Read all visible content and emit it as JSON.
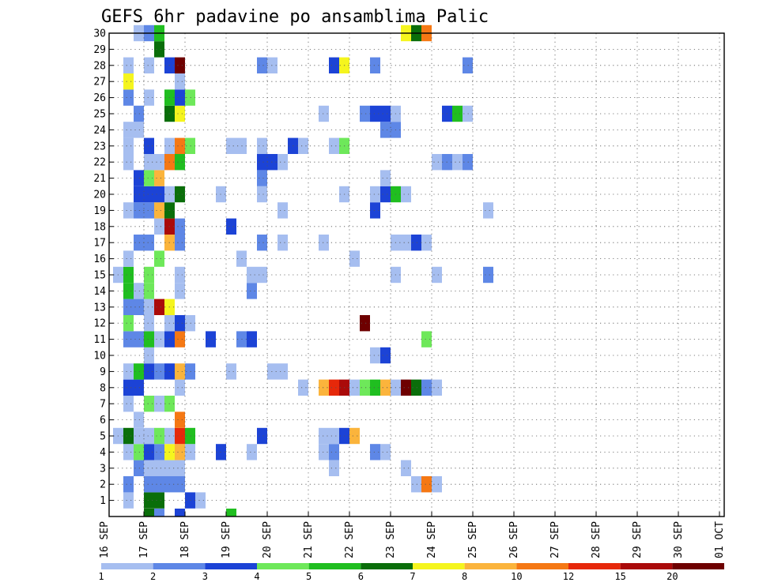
{
  "chart_data": {
    "type": "heatmap",
    "title": "GEFS 6hr padavine po ansamblima Palic",
    "x_ticks": [
      "16 SEP",
      "17 SEP",
      "18 SEP",
      "19 SEP",
      "20 SEP",
      "21 SEP",
      "22 SEP",
      "23 SEP",
      "24 SEP",
      "25 SEP",
      "26 SEP",
      "27 SEP",
      "28 SEP",
      "29 SEP",
      "30 SEP",
      "01 OCT"
    ],
    "y_ticks": [
      "1",
      "2",
      "3",
      "4",
      "5",
      "6",
      "7",
      "8",
      "9",
      "10",
      "11",
      "12",
      "13",
      "14",
      "15",
      "16",
      "17",
      "18",
      "19",
      "20",
      "21",
      "22",
      "23",
      "24",
      "25",
      "26",
      "27",
      "28",
      "29",
      "30"
    ],
    "x_range_steps": [
      0,
      60
    ],
    "y_range_members": [
      0,
      30
    ],
    "grid": true,
    "legend_position": "bottom",
    "legend": {
      "labels": [
        "1",
        "2",
        "3",
        "4",
        "5",
        "6",
        "7",
        "8",
        "10",
        "12",
        "15",
        "20"
      ],
      "colors": [
        "#a6bef0",
        "#5e87e6",
        "#1c43d6",
        "#6ee85a",
        "#20be20",
        "#0a6e0a",
        "#f5f51e",
        "#fbb43c",
        "#f57814",
        "#e6280a",
        "#aa0a0a",
        "#6e0000"
      ]
    },
    "members": [
      {
        "member": 1,
        "cells": [
          [
            2,
            1
          ],
          [
            4,
            6
          ],
          [
            5,
            6
          ],
          [
            8,
            3
          ],
          [
            9,
            1
          ]
        ]
      },
      {
        "member": 2,
        "cells": [
          [
            2,
            2
          ],
          [
            4,
            2
          ],
          [
            5,
            2
          ],
          [
            6,
            2
          ],
          [
            7,
            2
          ],
          [
            30,
            1
          ],
          [
            31,
            10
          ],
          [
            32,
            1
          ]
        ]
      },
      {
        "member": 3,
        "cells": [
          [
            3,
            2
          ],
          [
            4,
            1
          ],
          [
            5,
            1
          ],
          [
            6,
            1
          ],
          [
            7,
            1
          ],
          [
            22,
            1
          ],
          [
            29,
            1
          ]
        ]
      },
      {
        "member": 4,
        "cells": [
          [
            2,
            1
          ],
          [
            3,
            4
          ],
          [
            4,
            3
          ],
          [
            5,
            2
          ],
          [
            6,
            7
          ],
          [
            7,
            8
          ],
          [
            8,
            1
          ],
          [
            11,
            3
          ],
          [
            14,
            1
          ],
          [
            21,
            1
          ],
          [
            22,
            2
          ],
          [
            26,
            2
          ],
          [
            27,
            1
          ]
        ]
      },
      {
        "member": 5,
        "cells": [
          [
            1,
            1
          ],
          [
            2,
            6
          ],
          [
            3,
            1
          ],
          [
            4,
            1
          ],
          [
            5,
            4
          ],
          [
            6,
            1
          ],
          [
            7,
            12
          ],
          [
            8,
            5
          ],
          [
            15,
            3
          ],
          [
            21,
            1
          ],
          [
            22,
            1
          ],
          [
            23,
            3
          ],
          [
            24,
            8
          ]
        ]
      },
      {
        "member": 6,
        "cells": [
          [
            3,
            1
          ],
          [
            7,
            10
          ]
        ]
      },
      {
        "member": 7,
        "cells": [
          [
            2,
            1
          ],
          [
            4,
            4
          ],
          [
            5,
            1
          ],
          [
            6,
            4
          ]
        ]
      },
      {
        "member": 8,
        "cells": [
          [
            2,
            3
          ],
          [
            3,
            3
          ],
          [
            7,
            1
          ],
          [
            19,
            1
          ],
          [
            21,
            9
          ],
          [
            22,
            12
          ],
          [
            23,
            15
          ],
          [
            24,
            1
          ],
          [
            25,
            4
          ],
          [
            26,
            5
          ],
          [
            27,
            9
          ],
          [
            28,
            1
          ],
          [
            29,
            20
          ],
          [
            30,
            6
          ],
          [
            31,
            2
          ],
          [
            32,
            1
          ]
        ]
      },
      {
        "member": 9,
        "cells": [
          [
            2,
            1
          ],
          [
            3,
            5
          ],
          [
            4,
            3
          ],
          [
            5,
            2
          ],
          [
            6,
            3
          ],
          [
            7,
            8
          ],
          [
            8,
            2
          ],
          [
            12,
            1
          ],
          [
            16,
            1
          ],
          [
            17,
            1
          ]
        ]
      },
      {
        "member": 10,
        "cells": [
          [
            4,
            1
          ],
          [
            26,
            1
          ],
          [
            27,
            3
          ]
        ]
      },
      {
        "member": 11,
        "cells": [
          [
            2,
            2
          ],
          [
            3,
            2
          ],
          [
            4,
            5
          ],
          [
            5,
            1
          ],
          [
            6,
            3
          ],
          [
            7,
            10
          ],
          [
            10,
            3
          ],
          [
            13,
            2
          ],
          [
            14,
            3
          ],
          [
            31,
            4
          ]
        ]
      },
      {
        "member": 12,
        "cells": [
          [
            2,
            4
          ],
          [
            4,
            1
          ],
          [
            6,
            1
          ],
          [
            7,
            3
          ],
          [
            8,
            1
          ],
          [
            25,
            20
          ]
        ]
      },
      {
        "member": 13,
        "cells": [
          [
            2,
            2
          ],
          [
            3,
            2
          ],
          [
            4,
            1
          ],
          [
            5,
            15
          ],
          [
            6,
            7
          ]
        ]
      },
      {
        "member": 14,
        "cells": [
          [
            2,
            5
          ],
          [
            3,
            1
          ],
          [
            4,
            4
          ],
          [
            7,
            1
          ],
          [
            14,
            2
          ]
        ]
      },
      {
        "member": 15,
        "cells": [
          [
            1,
            1
          ],
          [
            2,
            5
          ],
          [
            4,
            4
          ],
          [
            7,
            1
          ],
          [
            14,
            1
          ],
          [
            15,
            1
          ],
          [
            28,
            1
          ],
          [
            32,
            1
          ],
          [
            37,
            2
          ]
        ]
      },
      {
        "member": 16,
        "cells": [
          [
            2,
            1
          ],
          [
            5,
            4
          ],
          [
            13,
            1
          ],
          [
            24,
            1
          ]
        ]
      },
      {
        "member": 17,
        "cells": [
          [
            3,
            2
          ],
          [
            4,
            2
          ],
          [
            6,
            9
          ],
          [
            7,
            2
          ],
          [
            15,
            2
          ],
          [
            17,
            1
          ],
          [
            21,
            1
          ],
          [
            28,
            1
          ],
          [
            29,
            1
          ],
          [
            30,
            3
          ],
          [
            31,
            1
          ]
        ]
      },
      {
        "member": 18,
        "cells": [
          [
            5,
            1
          ],
          [
            6,
            15
          ],
          [
            7,
            2
          ],
          [
            12,
            3
          ]
        ]
      },
      {
        "member": 19,
        "cells": [
          [
            2,
            1
          ],
          [
            3,
            2
          ],
          [
            4,
            2
          ],
          [
            5,
            9
          ],
          [
            6,
            6
          ],
          [
            17,
            1
          ],
          [
            26,
            3
          ],
          [
            37,
            1
          ]
        ]
      },
      {
        "member": 20,
        "cells": [
          [
            3,
            3
          ],
          [
            4,
            3
          ],
          [
            5,
            3
          ],
          [
            6,
            1
          ],
          [
            7,
            6
          ],
          [
            11,
            1
          ],
          [
            15,
            1
          ],
          [
            23,
            1
          ],
          [
            26,
            1
          ],
          [
            27,
            3
          ],
          [
            28,
            5
          ],
          [
            29,
            1
          ]
        ]
      },
      {
        "member": 21,
        "cells": [
          [
            3,
            3
          ],
          [
            4,
            4
          ],
          [
            5,
            9
          ],
          [
            15,
            2
          ],
          [
            27,
            1
          ]
        ]
      },
      {
        "member": 22,
        "cells": [
          [
            2,
            1
          ],
          [
            4,
            1
          ],
          [
            5,
            1
          ],
          [
            6,
            10
          ],
          [
            7,
            5
          ],
          [
            15,
            3
          ],
          [
            16,
            3
          ],
          [
            17,
            1
          ],
          [
            32,
            1
          ],
          [
            33,
            2
          ],
          [
            34,
            1
          ],
          [
            35,
            2
          ]
        ]
      },
      {
        "member": 23,
        "cells": [
          [
            2,
            1
          ],
          [
            4,
            3
          ],
          [
            6,
            1
          ],
          [
            7,
            10
          ],
          [
            8,
            4
          ],
          [
            12,
            1
          ],
          [
            13,
            1
          ],
          [
            15,
            1
          ],
          [
            18,
            3
          ],
          [
            19,
            1
          ],
          [
            22,
            1
          ],
          [
            23,
            4
          ]
        ]
      },
      {
        "member": 24,
        "cells": [
          [
            2,
            1
          ],
          [
            3,
            1
          ],
          [
            27,
            2
          ],
          [
            28,
            2
          ]
        ]
      },
      {
        "member": 25,
        "cells": [
          [
            3,
            2
          ],
          [
            6,
            6
          ],
          [
            7,
            7
          ],
          [
            21,
            1
          ],
          [
            25,
            2
          ],
          [
            26,
            3
          ],
          [
            27,
            3
          ],
          [
            28,
            1
          ],
          [
            33,
            3
          ],
          [
            34,
            5
          ],
          [
            35,
            1
          ]
        ]
      },
      {
        "member": 26,
        "cells": [
          [
            2,
            2
          ],
          [
            4,
            1
          ],
          [
            6,
            5
          ],
          [
            7,
            3
          ],
          [
            8,
            4
          ]
        ]
      },
      {
        "member": 27,
        "cells": [
          [
            2,
            7
          ],
          [
            7,
            1
          ]
        ]
      },
      {
        "member": 28,
        "cells": [
          [
            2,
            1
          ],
          [
            4,
            1
          ],
          [
            6,
            3
          ],
          [
            7,
            20
          ],
          [
            15,
            2
          ],
          [
            16,
            1
          ],
          [
            22,
            3
          ],
          [
            23,
            7
          ],
          [
            26,
            2
          ],
          [
            35,
            2
          ]
        ]
      },
      {
        "member": 29,
        "cells": [
          [
            5,
            6
          ]
        ]
      },
      {
        "member": 30,
        "cells": [
          [
            3,
            1
          ],
          [
            4,
            2
          ],
          [
            5,
            5
          ],
          [
            29,
            7
          ],
          [
            30,
            6
          ],
          [
            31,
            10
          ]
        ]
      }
    ],
    "bottom_row_cells": [
      [
        4,
        6
      ],
      [
        5,
        2
      ],
      [
        7,
        3
      ],
      [
        12,
        5
      ]
    ]
  }
}
